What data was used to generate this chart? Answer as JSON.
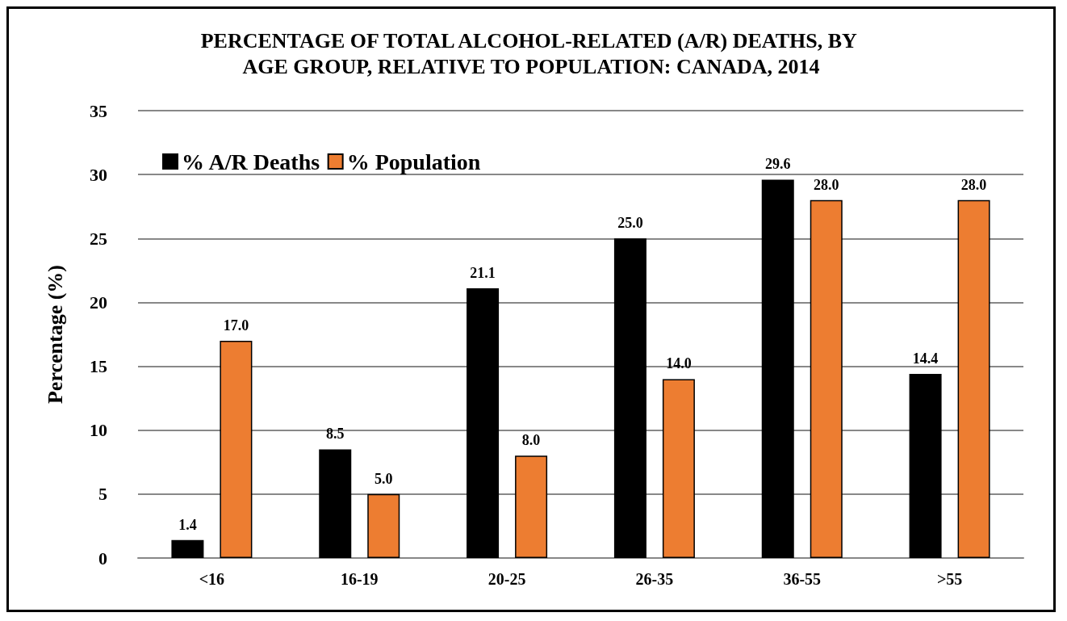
{
  "chart_data": {
    "type": "bar",
    "title": "PERCENTAGE OF TOTAL ALCOHOL-RELATED (A/R) DEATHS, BY AGE GROUP, RELATIVE TO POPULATION: CANADA, 2014",
    "ylabel": "Percentage (%)",
    "categories": [
      "<16",
      "16-19",
      "20-25",
      "26-35",
      "36-55",
      ">55"
    ],
    "series": [
      {
        "name": "% A/R Deaths",
        "color": "#000000",
        "values": [
          1.4,
          8.5,
          21.1,
          25.0,
          29.6,
          14.4
        ],
        "value_labels": [
          "1.4",
          "8.5",
          "21.1",
          "25.0",
          "29.6",
          "14.4"
        ]
      },
      {
        "name": "% Population",
        "color": "#ed7d31",
        "values": [
          17.0,
          5.0,
          8.0,
          14.0,
          28.0,
          28.0
        ],
        "value_labels": [
          "17.0",
          "5.0",
          "8.0",
          "14.0",
          "28.0",
          "28.0"
        ]
      }
    ],
    "ylim": [
      0,
      35
    ],
    "yticks": [
      0,
      5,
      10,
      15,
      20,
      25,
      30,
      35
    ],
    "grid": "y",
    "legend": "top left"
  }
}
